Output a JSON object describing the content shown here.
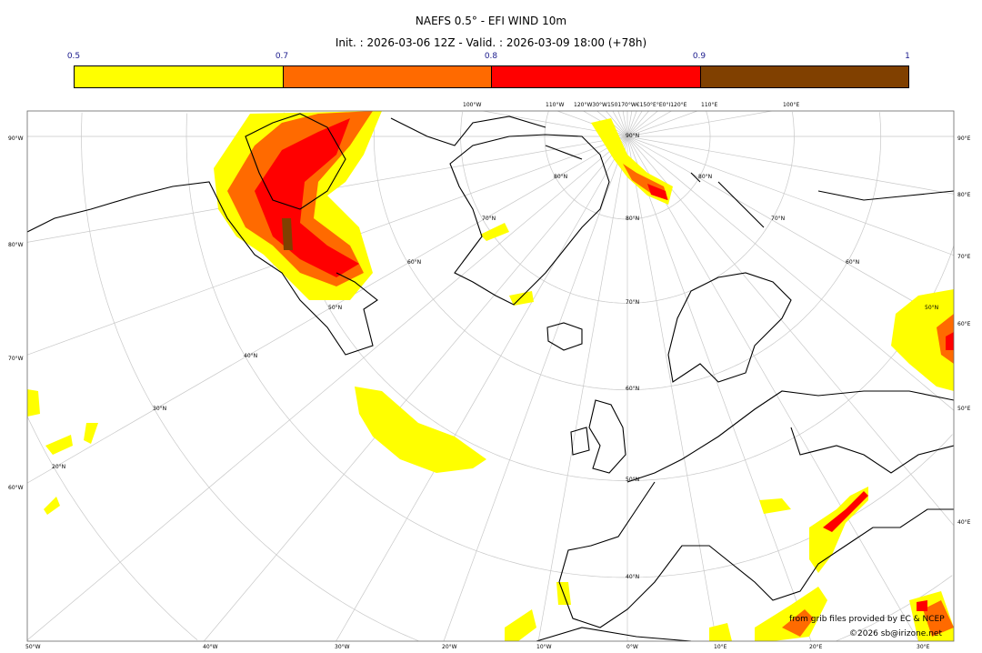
{
  "title": "NAEFS 0.5° - EFI WIND 10m",
  "subtitle": "Init. : 2026-03-06 12Z - Valid. : 2026-03-09 18:00 (+78h)",
  "colorbar": {
    "ticks": [
      "0.5",
      "0.7",
      "0.8",
      "0.9",
      "1"
    ],
    "colors": [
      "#ffff00",
      "#ff6a00",
      "#ff0000",
      "#804000"
    ]
  },
  "map": {
    "top_labels": [
      "100°W",
      "110°W",
      "120°W30°W150170°W€150°E°E0°I120°E",
      "110°E",
      "100°E"
    ],
    "left_labels": [
      "90°W",
      "80°W",
      "70°W",
      "60°W"
    ],
    "right_labels": [
      "90°E",
      "80°E",
      "70°E",
      "60°E",
      "50°E",
      "40°E"
    ],
    "bottom_labels": [
      "50°W",
      "40°W",
      "30°W",
      "20°W",
      "10°W",
      "0°W",
      "10°E",
      "20°E",
      "30°E"
    ],
    "lat_labels_center": [
      "90°N",
      "80°N",
      "70°N",
      "60°N",
      "50°N",
      "40°N"
    ],
    "lat_labels_left": [
      "80°N",
      "70°N",
      "60°N",
      "50°N",
      "40°N",
      "30°N",
      "20°N"
    ],
    "lat_labels_right": [
      "80°N",
      "70°N",
      "60°N",
      "50°N"
    ]
  },
  "footer": {
    "source": "from grib files provided by EC & NCEP",
    "copyright": "©2026 sb@irizone.net"
  }
}
